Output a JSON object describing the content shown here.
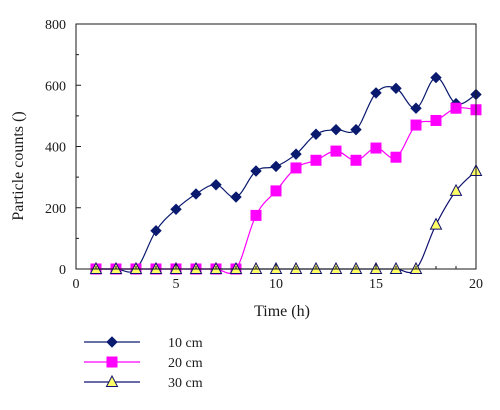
{
  "chart_data": {
    "type": "line",
    "title": "",
    "xlabel": "Time (h)",
    "ylabel": "Particle counts ()",
    "xlim": [
      0,
      20
    ],
    "ylim": [
      0,
      800
    ],
    "xticks": [
      0,
      5,
      10,
      15,
      20
    ],
    "yticks": [
      0,
      200,
      400,
      600,
      800
    ],
    "grid": false,
    "legend_position": "bottom-left",
    "series": [
      {
        "name": "10 cm",
        "color": "#0a1a6e",
        "marker": "diamond",
        "x": [
          1,
          2,
          3,
          4,
          5,
          6,
          7,
          8,
          9,
          10,
          11,
          12,
          13,
          14,
          15,
          16,
          17,
          18,
          19,
          20
        ],
        "y": [
          0,
          0,
          0,
          125,
          195,
          245,
          275,
          235,
          320,
          335,
          375,
          440,
          455,
          455,
          575,
          590,
          525,
          625,
          540,
          570
        ]
      },
      {
        "name": "20 cm",
        "color": "#ff00ff",
        "marker": "square",
        "x": [
          1,
          2,
          3,
          4,
          5,
          6,
          7,
          8,
          9,
          10,
          11,
          12,
          13,
          14,
          15,
          16,
          17,
          18,
          19,
          20
        ],
        "y": [
          0,
          0,
          0,
          0,
          0,
          0,
          0,
          0,
          175,
          255,
          330,
          355,
          385,
          355,
          395,
          365,
          470,
          485,
          525,
          520
        ]
      },
      {
        "name": "30 cm",
        "color": "#101070",
        "fill": "#ffff66",
        "marker": "triangle",
        "x": [
          1,
          2,
          3,
          4,
          5,
          6,
          7,
          8,
          9,
          10,
          11,
          12,
          13,
          14,
          15,
          16,
          17,
          18,
          19,
          20
        ],
        "y": [
          0,
          0,
          0,
          0,
          0,
          0,
          0,
          0,
          0,
          0,
          0,
          0,
          0,
          0,
          0,
          0,
          0,
          145,
          255,
          320
        ]
      }
    ]
  }
}
